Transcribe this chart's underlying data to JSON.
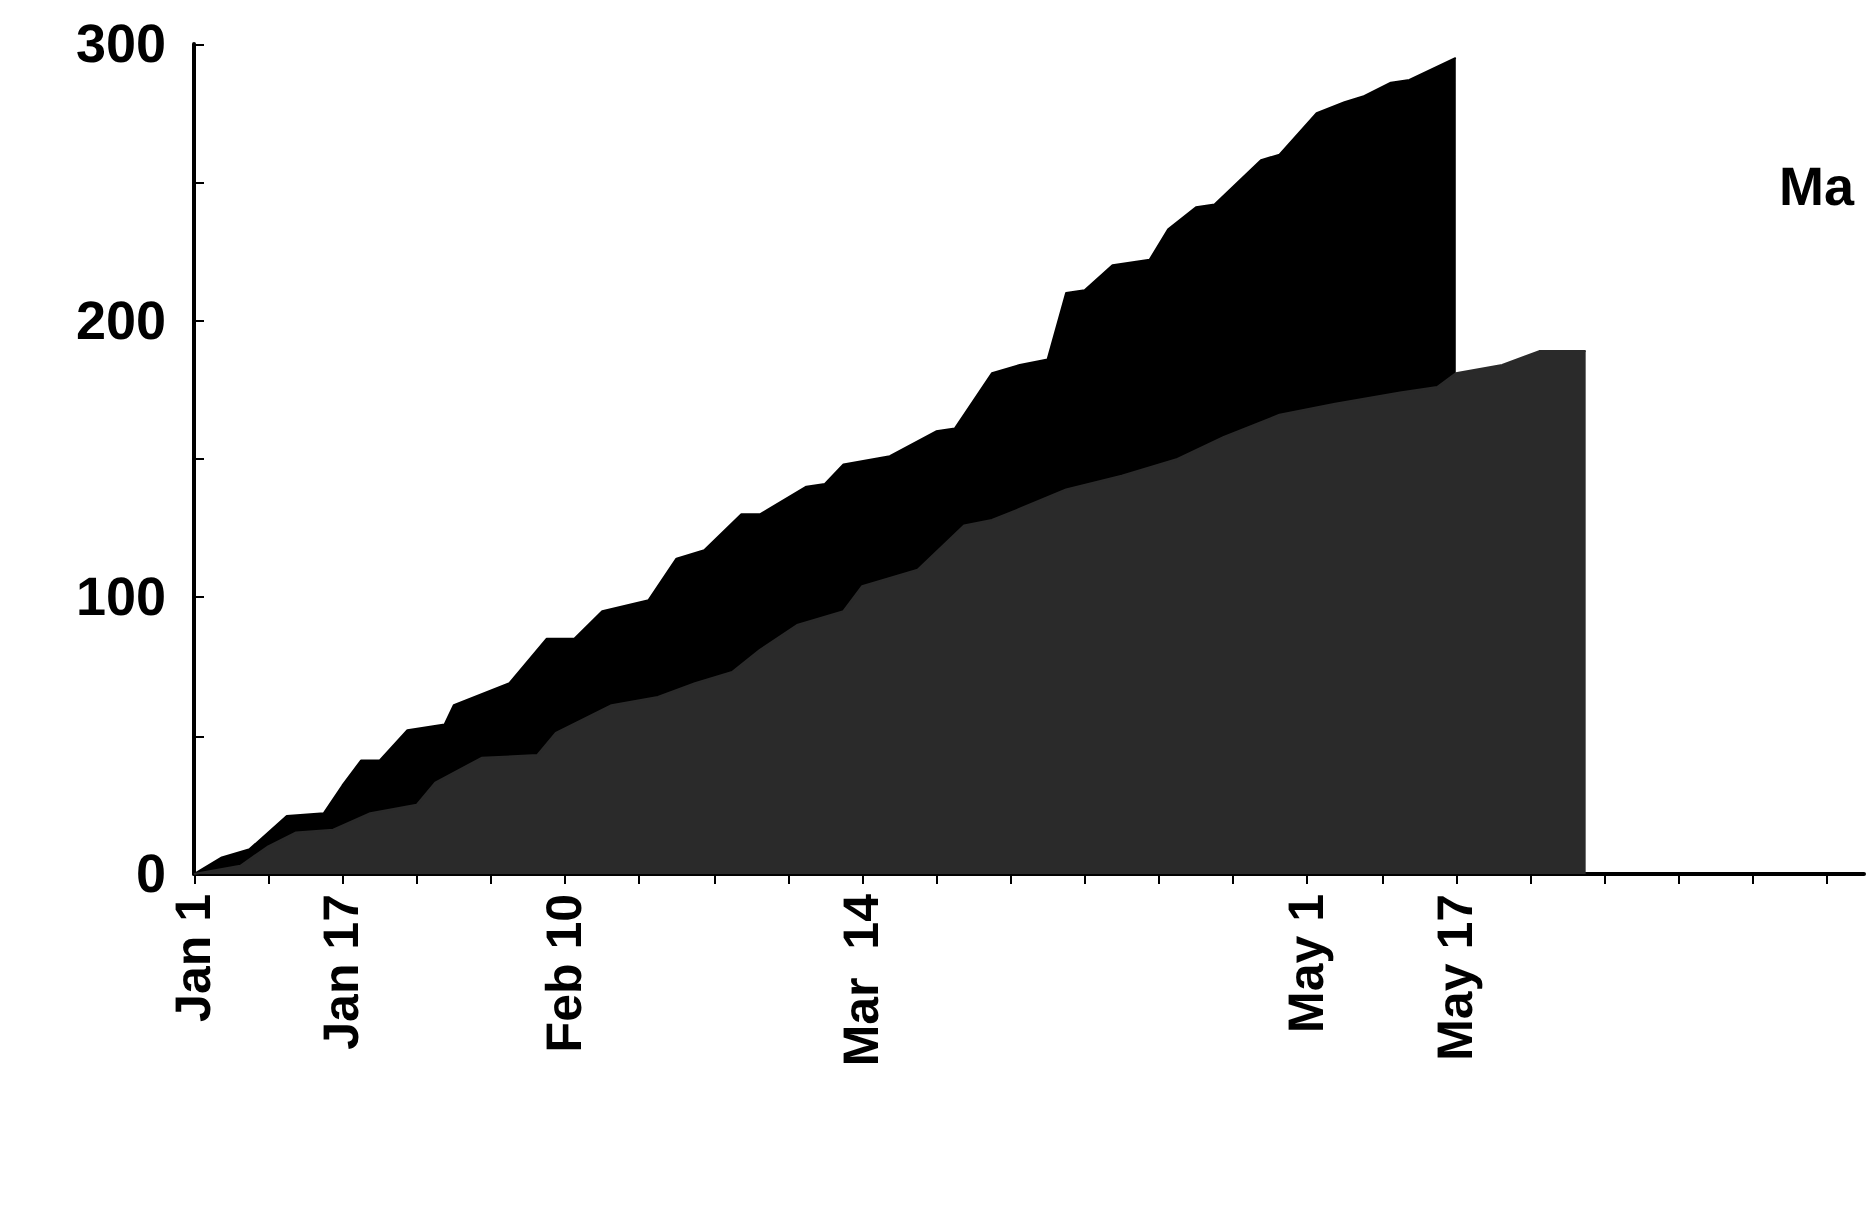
{
  "chart_data": {
    "type": "area",
    "xlim": [
      "--01-01",
      "--06-30"
    ],
    "xticks": [
      {
        "value": "--01-01",
        "label": "Jan 1"
      },
      {
        "value": "--01-09",
        "label": null
      },
      {
        "value": "--01-17",
        "label": "Jan 17"
      },
      {
        "value": "--01-25",
        "label": null
      },
      {
        "value": "--02-02",
        "label": null
      },
      {
        "value": "--02-10",
        "label": "Feb 10"
      },
      {
        "value": "--02-18",
        "label": null
      },
      {
        "value": "--02-26",
        "label": null
      },
      {
        "value": "--03-06",
        "label": null
      },
      {
        "value": "--03-14",
        "label": "Mar  14"
      },
      {
        "value": "--03-22",
        "label": null
      },
      {
        "value": "--03-30",
        "label": null
      },
      {
        "value": "--04-07",
        "label": null
      },
      {
        "value": "--04-15",
        "label": null
      },
      {
        "value": "--04-23",
        "label": null
      },
      {
        "value": "--05-01",
        "label": "May 1"
      },
      {
        "value": "--05-09",
        "label": null
      },
      {
        "value": "--05-17",
        "label": "May 17"
      },
      {
        "value": "--05-25",
        "label": null
      },
      {
        "value": "--06-02",
        "label": null
      },
      {
        "value": "--06-10",
        "label": null
      },
      {
        "value": "--06-18",
        "label": null
      },
      {
        "value": "--06-26",
        "label": null
      }
    ],
    "ylim": [
      0,
      300
    ],
    "yticks": [
      0,
      {
        "value": 50,
        "label": null
      },
      100,
      {
        "value": 150,
        "label": null
      },
      200,
      {
        "value": 250,
        "label": null
      },
      300
    ],
    "annotations": [
      "Ma"
    ],
    "series": [
      {
        "color": "#000000",
        "x": [
          "--01-01",
          "--01-04",
          "--01-07",
          "--01-11",
          "--01-15",
          "--01-17",
          "--01-19",
          "--01-21",
          "--01-24",
          "--01-28",
          "--01-29",
          "--02-04",
          "--02-08",
          "--02-11",
          "--02-14",
          "--02-19",
          "--02-22",
          "--02-25",
          "--03-01",
          "--03-03",
          "--03-08",
          "--03-10",
          "--03-12",
          "--03-17",
          "--03-22",
          "--03-24",
          "--03-28",
          "--03-31",
          "--04-03",
          "--04-05",
          "--04-07",
          "--04-10",
          "--04-14",
          "--04-16",
          "--04-19",
          "--04-21",
          "--04-26",
          "--04-28",
          "--05-02",
          "--05-05",
          "--05-07",
          "--05-10",
          "--05-12",
          "--05-17"
        ],
        "values": [
          0,
          6,
          9,
          21,
          22,
          32,
          41,
          41,
          52,
          54,
          61,
          69,
          85,
          85,
          95,
          99,
          114,
          117,
          130,
          130,
          140,
          141,
          148,
          151,
          160,
          161,
          181,
          184,
          186,
          210,
          211,
          220,
          222,
          233,
          241,
          242,
          258,
          260,
          275,
          279,
          281,
          286,
          287,
          295
        ]
      },
      {
        "color": "#2a2a2a",
        "x": [
          "--01-01",
          "--01-06",
          "--01-09",
          "--01-12",
          "--01-16",
          "--01-20",
          "--01-25",
          "--01-27",
          "--02-01",
          "--02-07",
          "--02-09",
          "--02-15",
          "--02-20",
          "--02-24",
          "--02-28",
          "--03-03",
          "--03-07",
          "--03-12",
          "--03-14",
          "--03-20",
          "--03-25",
          "--03-28",
          "--03-31",
          "--04-05",
          "--04-11",
          "--04-17",
          "--04-22",
          "--04-28",
          "--05-04",
          "--05-11",
          "--05-15",
          "--05-17",
          "--05-22",
          "--05-26",
          "--05-31"
        ],
        "values": [
          0,
          3,
          10,
          15,
          16,
          22,
          25,
          33,
          42,
          43,
          51,
          61,
          64,
          69,
          73,
          81,
          90,
          95,
          104,
          110,
          126,
          128,
          132,
          139,
          144,
          150,
          158,
          166,
          170,
          174,
          176,
          181,
          184,
          189,
          189
        ]
      }
    ]
  }
}
